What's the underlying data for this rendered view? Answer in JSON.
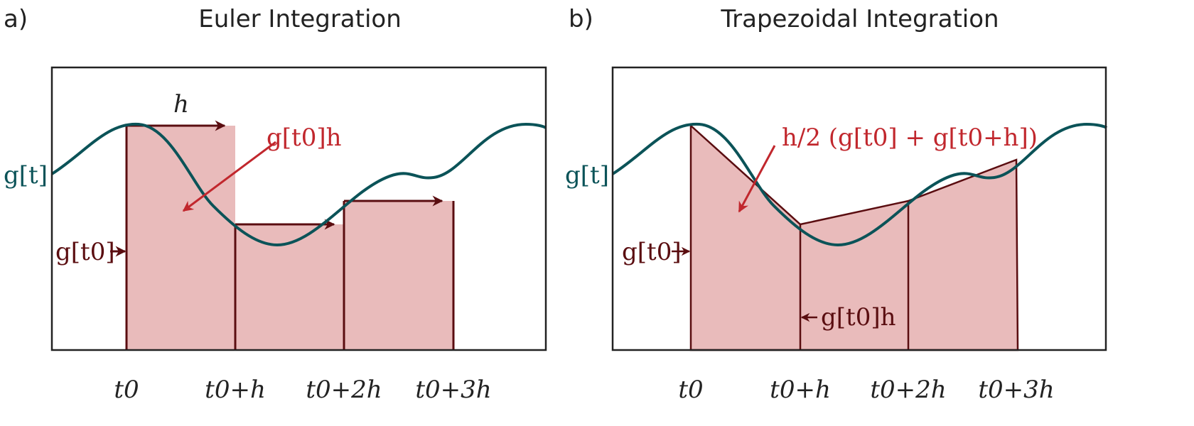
{
  "colors": {
    "curve": "#0b5358",
    "fill": "#e9bbbb",
    "dark": "#5a0d10",
    "red": "#c1272d",
    "text": "#222"
  },
  "panel_a": {
    "label": "a)",
    "title": "Euler Integration",
    "function_label": "g[t]",
    "g0_label": "g[t0]",
    "h_label": "h",
    "area_label": "g[t0]h",
    "ticks": [
      "t0",
      "t0+h",
      "t0+2h",
      "t0+3h"
    ]
  },
  "panel_b": {
    "label": "b)",
    "title": "Trapezoidal Integration",
    "function_label": "g[t]",
    "g0_label": "g[t0]",
    "area_label": "h/2 (g[t0] + g[t0+h])",
    "step_label": "g[t0]h",
    "ticks": [
      "t0",
      "t0+h",
      "t0+2h",
      "t0+3h"
    ]
  }
}
